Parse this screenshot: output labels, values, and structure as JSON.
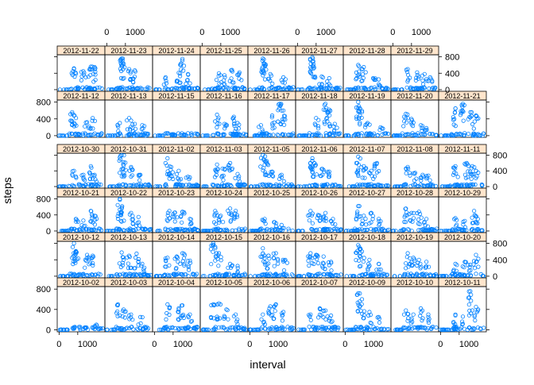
{
  "chart_data": {
    "type": "scatter",
    "layout": "lattice",
    "xlabel": "interval",
    "ylabel": "steps",
    "xlim": [
      -100,
      2455
    ],
    "ylim": [
      -40,
      850
    ],
    "x_ticks": [
      0,
      1000
    ],
    "x_tick_labels": [
      "0",
      "1000"
    ],
    "y_ticks": [
      0,
      400,
      800
    ],
    "y_tick_labels": [
      "0",
      "400",
      "800"
    ],
    "point_color": "#0080ff",
    "strip_color": "#ffe5cc",
    "panel_rows": [
      [
        "2012-11-22",
        "2012-11-23",
        "2012-11-24",
        "2012-11-25",
        "2012-11-26",
        "2012-11-27",
        "2012-11-28",
        "2012-11-29"
      ],
      [
        "2012-11-12",
        "2012-11-13",
        "2012-11-15",
        "2012-11-16",
        "2012-11-17",
        "2012-11-18",
        "2012-11-19",
        "2012-11-20",
        "2012-11-21"
      ],
      [
        "2012-10-30",
        "2012-10-31",
        "2012-11-02",
        "2012-11-03",
        "2012-11-05",
        "2012-11-06",
        "2012-11-07",
        "2012-11-08",
        "2012-11-11"
      ],
      [
        "2012-10-21",
        "2012-10-22",
        "2012-10-23",
        "2012-10-24",
        "2012-10-25",
        "2012-10-26",
        "2012-10-27",
        "2012-10-28",
        "2012-10-29"
      ],
      [
        "2012-10-12",
        "2012-10-13",
        "2012-10-14",
        "2012-10-15",
        "2012-10-16",
        "2012-10-17",
        "2012-10-18",
        "2012-10-19",
        "2012-10-20"
      ],
      [
        "2012-10-02",
        "2012-10-03",
        "2012-10-04",
        "2012-10-05",
        "2012-10-06",
        "2012-10-07",
        "2012-10-09",
        "2012-10-10",
        "2012-10-11"
      ]
    ],
    "series_summary": [
      {
        "date": "2012-11-22",
        "peaks": [
          [
            800,
            520
          ],
          [
            1300,
            450
          ],
          [
            1700,
            560
          ],
          [
            1900,
            550
          ]
        ]
      },
      {
        "date": "2012-11-23",
        "peaks": [
          [
            800,
            760
          ],
          [
            850,
            650
          ],
          [
            1200,
            500
          ],
          [
            1500,
            470
          ]
        ]
      },
      {
        "date": "2012-11-24",
        "peaks": [
          [
            600,
            300
          ],
          [
            1300,
            410
          ],
          [
            1500,
            750
          ],
          [
            1800,
            380
          ]
        ]
      },
      {
        "date": "2012-11-25",
        "peaks": [
          [
            900,
            400
          ],
          [
            1200,
            350
          ],
          [
            1600,
            480
          ],
          [
            2000,
            420
          ]
        ]
      },
      {
        "date": "2012-11-26",
        "peaks": [
          [
            700,
            760
          ],
          [
            750,
            640
          ],
          [
            1100,
            380
          ],
          [
            1800,
            300
          ]
        ]
      },
      {
        "date": "2012-11-27",
        "peaks": [
          [
            800,
            790
          ],
          [
            850,
            690
          ],
          [
            1300,
            320
          ],
          [
            1700,
            280
          ]
        ]
      },
      {
        "date": "2012-11-28",
        "peaks": [
          [
            700,
            600
          ],
          [
            1000,
            550
          ],
          [
            1500,
            280
          ],
          [
            1800,
            250
          ]
        ]
      },
      {
        "date": "2012-11-29",
        "peaks": [
          [
            800,
            500
          ],
          [
            1300,
            420
          ],
          [
            1700,
            380
          ],
          [
            2000,
            300
          ]
        ]
      },
      {
        "date": "2012-11-12",
        "peaks": [
          [
            700,
            560
          ],
          [
            800,
            480
          ],
          [
            1500,
            320
          ],
          [
            1800,
            420
          ]
        ]
      },
      {
        "date": "2012-11-13",
        "peaks": [
          [
            700,
            300
          ],
          [
            1200,
            420
          ],
          [
            1500,
            280
          ],
          [
            1900,
            250
          ]
        ]
      },
      {
        "date": "2012-11-15",
        "peaks": [
          [
            1000,
            20
          ]
        ]
      },
      {
        "date": "2012-11-16",
        "peaks": [
          [
            800,
            500
          ],
          [
            1200,
            280
          ],
          [
            1700,
            450
          ],
          [
            1900,
            300
          ]
        ]
      },
      {
        "date": "2012-11-17",
        "peaks": [
          [
            600,
            250
          ],
          [
            1200,
            480
          ],
          [
            1600,
            760
          ],
          [
            1800,
            600
          ]
        ]
      },
      {
        "date": "2012-11-18",
        "peaks": [
          [
            1000,
            420
          ],
          [
            1500,
            760
          ],
          [
            1700,
            620
          ],
          [
            2000,
            280
          ]
        ]
      },
      {
        "date": "2012-11-19",
        "peaks": [
          [
            700,
            800
          ],
          [
            800,
            650
          ],
          [
            1200,
            300
          ],
          [
            1900,
            200
          ]
        ]
      },
      {
        "date": "2012-11-20",
        "peaks": [
          [
            700,
            520
          ],
          [
            1000,
            400
          ],
          [
            1500,
            250
          ],
          [
            1800,
            180
          ]
        ]
      },
      {
        "date": "2012-11-21",
        "peaks": [
          [
            800,
            650
          ],
          [
            1200,
            760
          ],
          [
            1600,
            560
          ],
          [
            1900,
            480
          ]
        ]
      },
      {
        "date": "2012-10-30",
        "peaks": [
          [
            800,
            400
          ],
          [
            1300,
            300
          ],
          [
            1700,
            520
          ],
          [
            1900,
            300
          ]
        ]
      },
      {
        "date": "2012-10-31",
        "peaks": [
          [
            800,
            800
          ],
          [
            900,
            620
          ],
          [
            1300,
            500
          ],
          [
            1800,
            300
          ]
        ]
      },
      {
        "date": "2012-11-02",
        "peaks": [
          [
            700,
            720
          ],
          [
            900,
            500
          ],
          [
            1300,
            400
          ],
          [
            1800,
            250
          ]
        ]
      },
      {
        "date": "2012-11-03",
        "peaks": [
          [
            800,
            560
          ],
          [
            1100,
            460
          ],
          [
            1500,
            600
          ],
          [
            1900,
            320
          ]
        ]
      },
      {
        "date": "2012-11-05",
        "peaks": [
          [
            700,
            800
          ],
          [
            900,
            650
          ],
          [
            1200,
            380
          ],
          [
            1700,
            300
          ]
        ]
      },
      {
        "date": "2012-11-06",
        "peaks": [
          [
            800,
            720
          ],
          [
            900,
            600
          ],
          [
            1300,
            450
          ],
          [
            1700,
            380
          ]
        ]
      },
      {
        "date": "2012-11-07",
        "peaks": [
          [
            700,
            760
          ],
          [
            1000,
            520
          ],
          [
            1400,
            400
          ],
          [
            1700,
            600
          ]
        ]
      },
      {
        "date": "2012-11-08",
        "peaks": [
          [
            800,
            500
          ],
          [
            1200,
            350
          ],
          [
            1600,
            300
          ],
          [
            1900,
            280
          ]
        ]
      },
      {
        "date": "2012-11-11",
        "peaks": [
          [
            800,
            520
          ],
          [
            1400,
            600
          ],
          [
            1700,
            520
          ],
          [
            1900,
            400
          ]
        ]
      },
      {
        "date": "2012-10-21",
        "peaks": [
          [
            900,
            300
          ],
          [
            1300,
            260
          ],
          [
            1700,
            500
          ],
          [
            1900,
            380
          ]
        ]
      },
      {
        "date": "2012-10-22",
        "peaks": [
          [
            700,
            800
          ],
          [
            800,
            560
          ],
          [
            1300,
            450
          ],
          [
            1700,
            350
          ]
        ]
      },
      {
        "date": "2012-10-23",
        "peaks": [
          [
            800,
            500
          ],
          [
            1100,
            460
          ],
          [
            1500,
            480
          ],
          [
            1900,
            300
          ]
        ]
      },
      {
        "date": "2012-10-24",
        "peaks": [
          [
            700,
            500
          ],
          [
            1000,
            380
          ],
          [
            1500,
            560
          ],
          [
            1800,
            500
          ]
        ]
      },
      {
        "date": "2012-10-25",
        "peaks": [
          [
            800,
            300
          ],
          [
            1300,
            220
          ],
          [
            1700,
            150
          ]
        ]
      },
      {
        "date": "2012-10-26",
        "peaks": [
          [
            700,
            500
          ],
          [
            1100,
            400
          ],
          [
            1500,
            450
          ],
          [
            1900,
            300
          ]
        ]
      },
      {
        "date": "2012-10-27",
        "peaks": [
          [
            700,
            620
          ],
          [
            1000,
            380
          ],
          [
            1400,
            450
          ],
          [
            1800,
            300
          ]
        ]
      },
      {
        "date": "2012-10-28",
        "peaks": [
          [
            700,
            560
          ],
          [
            1000,
            450
          ],
          [
            1400,
            480
          ],
          [
            1800,
            300
          ]
        ]
      },
      {
        "date": "2012-10-29",
        "peaks": [
          [
            800,
            320
          ],
          [
            1300,
            250
          ],
          [
            1800,
            500
          ],
          [
            2000,
            300
          ]
        ]
      },
      {
        "date": "2012-10-12",
        "peaks": [
          [
            800,
            800
          ],
          [
            900,
            600
          ],
          [
            1500,
            520
          ],
          [
            1800,
            500
          ]
        ]
      },
      {
        "date": "2012-10-13",
        "peaks": [
          [
            800,
            580
          ],
          [
            1200,
            500
          ],
          [
            1600,
            550
          ],
          [
            1900,
            300
          ]
        ]
      },
      {
        "date": "2012-10-14",
        "peaks": [
          [
            700,
            450
          ],
          [
            1200,
            480
          ],
          [
            1500,
            560
          ],
          [
            1900,
            380
          ]
        ]
      },
      {
        "date": "2012-10-15",
        "peaks": [
          [
            600,
            800
          ],
          [
            900,
            560
          ],
          [
            1500,
            300
          ],
          [
            1900,
            250
          ]
        ]
      },
      {
        "date": "2012-10-16",
        "peaks": [
          [
            700,
            680
          ],
          [
            1000,
            500
          ],
          [
            1400,
            560
          ],
          [
            1900,
            400
          ]
        ]
      },
      {
        "date": "2012-10-17",
        "peaks": [
          [
            700,
            560
          ],
          [
            1000,
            520
          ],
          [
            1400,
            480
          ],
          [
            1800,
            350
          ]
        ]
      },
      {
        "date": "2012-10-18",
        "peaks": [
          [
            700,
            760
          ],
          [
            900,
            600
          ],
          [
            1300,
            400
          ],
          [
            1800,
            300
          ]
        ]
      },
      {
        "date": "2012-10-19",
        "peaks": [
          [
            800,
            560
          ],
          [
            1100,
            450
          ],
          [
            1400,
            400
          ],
          [
            1800,
            350
          ]
        ]
      },
      {
        "date": "2012-10-20",
        "peaks": [
          [
            800,
            300
          ],
          [
            1300,
            350
          ],
          [
            1600,
            280
          ],
          [
            1900,
            520
          ]
        ]
      },
      {
        "date": "2012-10-02",
        "peaks": [
          [
            2000,
            100
          ]
        ]
      },
      {
        "date": "2012-10-03",
        "peaks": [
          [
            600,
            500
          ],
          [
            900,
            400
          ],
          [
            1300,
            300
          ],
          [
            1800,
            250
          ]
        ]
      },
      {
        "date": "2012-10-04",
        "peaks": [
          [
            700,
            500
          ],
          [
            1300,
            420
          ],
          [
            1500,
            480
          ],
          [
            1900,
            300
          ]
        ]
      },
      {
        "date": "2012-10-05",
        "peaks": [
          [
            600,
            500
          ],
          [
            900,
            520
          ],
          [
            1300,
            400
          ],
          [
            1800,
            300
          ]
        ]
      },
      {
        "date": "2012-10-06",
        "peaks": [
          [
            700,
            300
          ],
          [
            1100,
            460
          ],
          [
            1400,
            500
          ],
          [
            1800,
            350
          ]
        ]
      },
      {
        "date": "2012-10-07",
        "peaks": [
          [
            700,
            300
          ],
          [
            1200,
            420
          ],
          [
            1500,
            380
          ],
          [
            1800,
            280
          ]
        ]
      },
      {
        "date": "2012-10-09",
        "peaks": [
          [
            700,
            720
          ],
          [
            900,
            600
          ],
          [
            1300,
            350
          ],
          [
            1800,
            250
          ]
        ]
      },
      {
        "date": "2012-10-10",
        "peaks": [
          [
            700,
            380
          ],
          [
            1100,
            300
          ],
          [
            1500,
            420
          ],
          [
            1900,
            300
          ]
        ]
      },
      {
        "date": "2012-10-11",
        "peaks": [
          [
            800,
            300
          ],
          [
            1200,
            260
          ],
          [
            1600,
            760
          ],
          [
            1900,
            450
          ]
        ]
      }
    ]
  }
}
